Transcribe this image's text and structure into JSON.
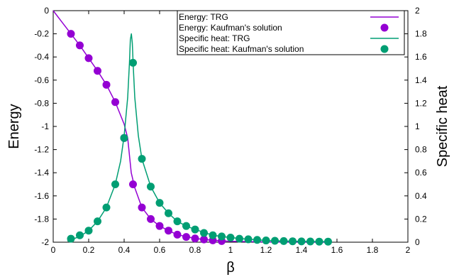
{
  "chart_data": {
    "type": "line",
    "xlabel": "β",
    "ylabel_left": "Energy",
    "ylabel_right": "Specific heat",
    "xlim": [
      0,
      2
    ],
    "ylim_left": [
      -2,
      0
    ],
    "ylim_right": [
      0,
      2
    ],
    "x_ticks": [
      "0",
      "0.2",
      "0.4",
      "0.6",
      "0.8",
      "1",
      "1.2",
      "1.4",
      "1.6",
      "1.8",
      "2"
    ],
    "y_left_ticks": [
      "0",
      "-0.2",
      "-0.4",
      "-0.6",
      "-0.8",
      "-1",
      "-1.2",
      "-1.4",
      "-1.6",
      "-1.8",
      "-2"
    ],
    "y_right_ticks": [
      "2",
      "1.8",
      "1.6",
      "1.4",
      "1.2",
      "1",
      "0.8",
      "0.6",
      "0.4",
      "0.2",
      "0"
    ],
    "grid": false,
    "legend_position": "top-right",
    "series": [
      {
        "name": "Energy: TRG",
        "axis": "left",
        "style": "line",
        "color": "#9400d3",
        "x": [
          0,
          0.05,
          0.1,
          0.15,
          0.2,
          0.25,
          0.3,
          0.35,
          0.4,
          0.42,
          0.44,
          0.46,
          0.5,
          0.55,
          0.6,
          0.65,
          0.7,
          0.8,
          0.9,
          1.0,
          1.2,
          1.4,
          1.55
        ],
        "y": [
          0,
          -0.1,
          -0.2,
          -0.3,
          -0.41,
          -0.52,
          -0.64,
          -0.79,
          -0.98,
          -1.1,
          -1.4,
          -1.53,
          -1.7,
          -1.8,
          -1.86,
          -1.9,
          -1.935,
          -1.968,
          -1.984,
          -1.992,
          -1.998,
          -2.0,
          -2.0
        ]
      },
      {
        "name": "Energy: Kaufman's solution",
        "axis": "left",
        "style": "points",
        "color": "#9400d3",
        "x": [
          0.1,
          0.15,
          0.2,
          0.25,
          0.3,
          0.35,
          0.4,
          0.45,
          0.5,
          0.55,
          0.6,
          0.65,
          0.7,
          0.75,
          0.8,
          0.85,
          0.9,
          0.95
        ],
        "y": [
          -0.2,
          -0.3,
          -0.41,
          -0.52,
          -0.64,
          -0.79,
          -1.1,
          -1.5,
          -1.7,
          -1.8,
          -1.86,
          -1.9,
          -1.935,
          -1.955,
          -1.968,
          -1.976,
          -1.984,
          -1.99
        ]
      },
      {
        "name": "Specific heat: TRG",
        "axis": "right",
        "style": "line",
        "color": "#009e73",
        "x": [
          0.08,
          0.1,
          0.15,
          0.2,
          0.25,
          0.3,
          0.35,
          0.38,
          0.4,
          0.42,
          0.43,
          0.435,
          0.4407,
          0.446,
          0.452,
          0.46,
          0.48,
          0.5,
          0.55,
          0.6,
          0.65,
          0.7,
          0.75,
          0.8,
          0.9,
          1.0,
          1.1,
          1.2,
          1.3,
          1.4,
          1.55
        ],
        "y": [
          0.01,
          0.02,
          0.05,
          0.1,
          0.18,
          0.3,
          0.5,
          0.7,
          0.92,
          1.25,
          1.55,
          1.75,
          1.8,
          1.72,
          1.5,
          1.25,
          0.92,
          0.72,
          0.48,
          0.34,
          0.25,
          0.18,
          0.14,
          0.11,
          0.06,
          0.04,
          0.025,
          0.015,
          0.01,
          0.007,
          0.005
        ]
      },
      {
        "name": "Specific heat: Kaufman's solution",
        "axis": "right",
        "style": "points",
        "color": "#009e73",
        "x": [
          0.1,
          0.15,
          0.2,
          0.25,
          0.3,
          0.35,
          0.4,
          0.45,
          0.5,
          0.55,
          0.6,
          0.65,
          0.7,
          0.75,
          0.8,
          0.85,
          0.9,
          0.95,
          1.0,
          1.05,
          1.1,
          1.15,
          1.2,
          1.25,
          1.3,
          1.35,
          1.4,
          1.45,
          1.5,
          1.55
        ],
        "y": [
          0.03,
          0.06,
          0.1,
          0.18,
          0.3,
          0.5,
          0.9,
          1.55,
          0.72,
          0.48,
          0.34,
          0.25,
          0.18,
          0.14,
          0.11,
          0.08,
          0.06,
          0.05,
          0.04,
          0.03,
          0.025,
          0.02,
          0.015,
          0.012,
          0.01,
          0.008,
          0.007,
          0.006,
          0.005,
          0.005
        ]
      }
    ]
  }
}
